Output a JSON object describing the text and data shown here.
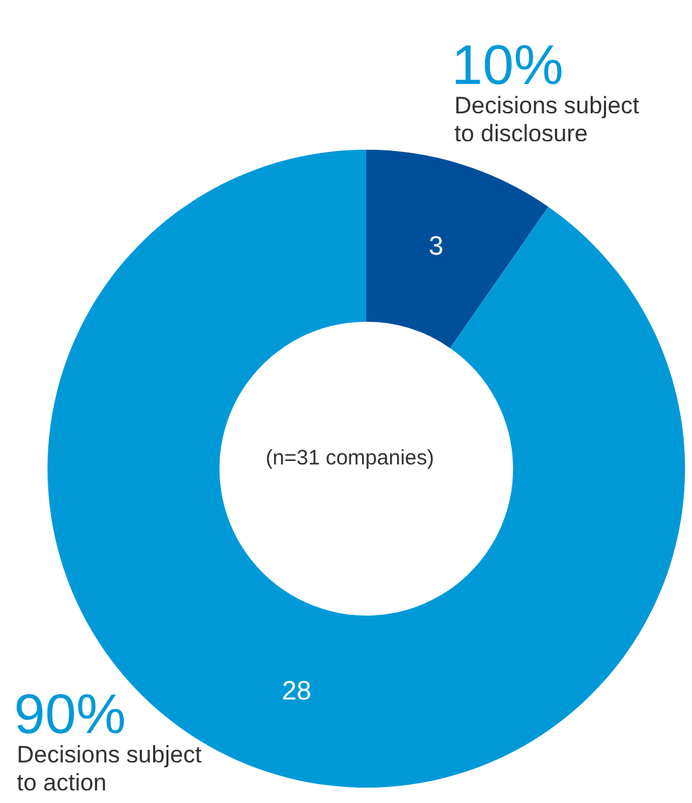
{
  "chart_data": {
    "type": "donut",
    "categories": [
      "Decisions subject to disclosure",
      "Decisions subject to action"
    ],
    "values": [
      3,
      28
    ],
    "colors": [
      "#004f9a",
      "#0099d8"
    ],
    "data_labels": true,
    "annotations": [
      "10%",
      "90%",
      "(n=31 companies)"
    ]
  }
}
